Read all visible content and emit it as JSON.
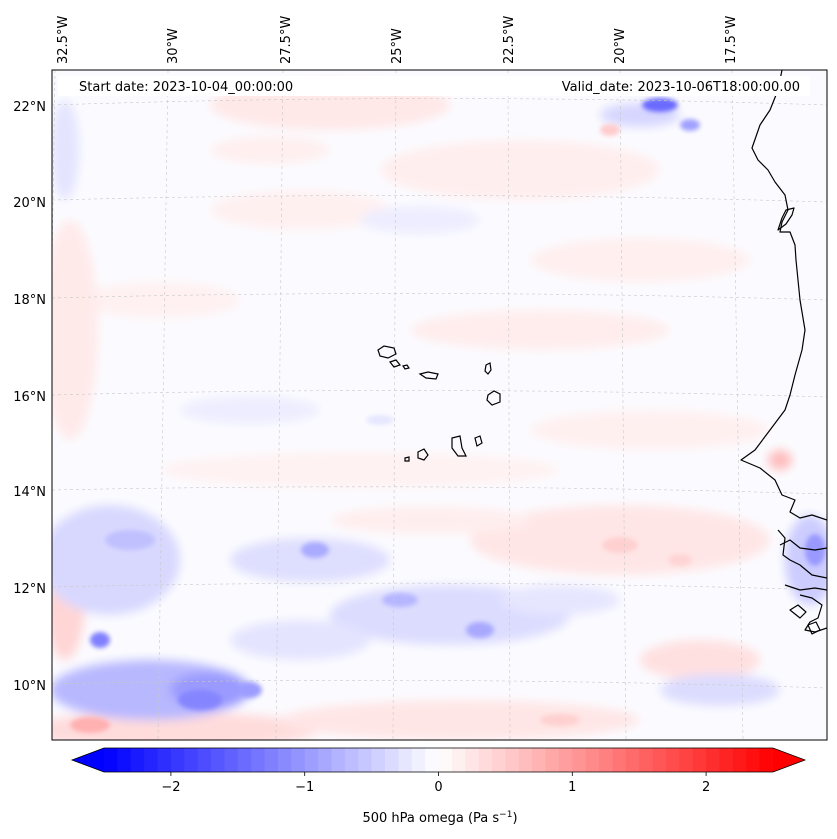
{
  "map": {
    "start_date_label": "Start date: 2023-10-04_00:00:00",
    "valid_date_label": "Valid_date: 2023-10-06T18:00:00.00",
    "lon_labels": [
      "32.5°W",
      "30°W",
      "27.5°W",
      "25°W",
      "22.5°W",
      "20°W",
      "17.5°W"
    ],
    "lat_labels": [
      "22°N",
      "20°N",
      "18°N",
      "16°N",
      "14°N",
      "12°N",
      "10°N"
    ],
    "gridlines": true,
    "coastline_color": "#000000"
  },
  "colorbar": {
    "label": "500 hPa omega (Pa s",
    "label_superscript": "−1",
    "label_close": ")",
    "ticks": [
      "−2",
      "−1",
      "0",
      "1",
      "2"
    ],
    "tick_values": [
      -2,
      -1,
      0,
      1,
      2
    ],
    "range": [
      -2.5,
      2.5
    ],
    "colormap": "bwr",
    "colors": {
      "min": "#0000ff",
      "mid": "#ffffff",
      "max": "#ff0000"
    },
    "extend": "both"
  }
}
